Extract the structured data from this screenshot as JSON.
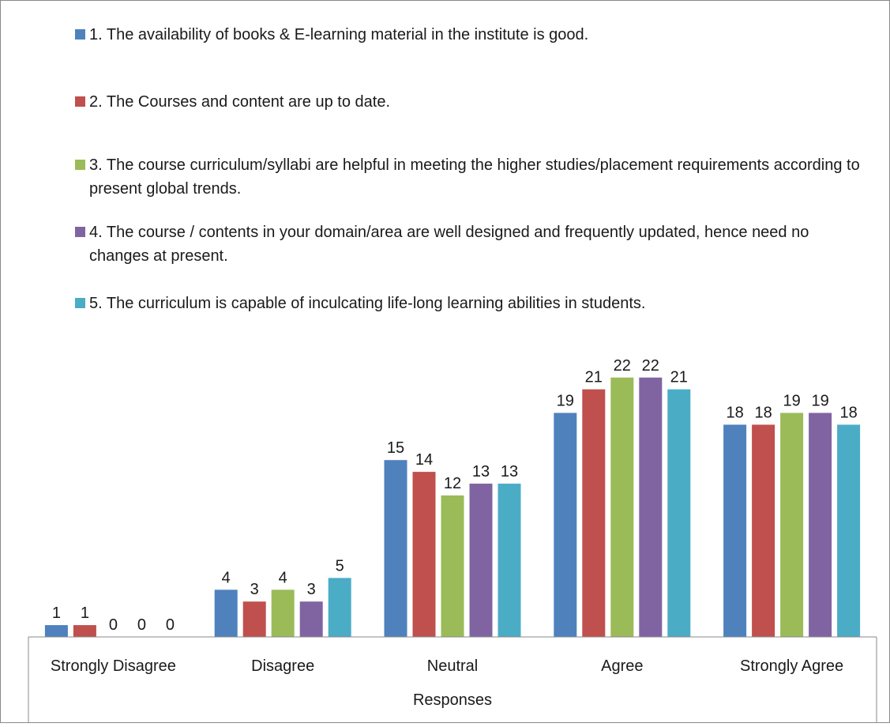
{
  "chart_data": {
    "type": "bar",
    "xlabel": "Responses",
    "ylabel": "",
    "ylim": [
      0,
      25
    ],
    "grid": false,
    "legend_position": "top",
    "categories": [
      "Strongly Disagree",
      "Disagree",
      "Neutral",
      "Agree",
      "Strongly Agree"
    ],
    "series": [
      {
        "name": "1. The availability of books & E-learning material in the institute is good.",
        "color": "#4F81BD",
        "values": [
          1,
          4,
          15,
          19,
          18
        ]
      },
      {
        "name": "2. The Courses and content are up to date.",
        "color": "#C0504D",
        "values": [
          1,
          3,
          14,
          21,
          18
        ]
      },
      {
        "name": "3. The course curriculum/syllabi are helpful in meeting the higher studies/placement requirements according to present global trends.",
        "color": "#9BBB59",
        "values": [
          0,
          4,
          12,
          22,
          19
        ]
      },
      {
        "name": "4. The course / contents in your domain/area are well designed and frequently updated, hence need no changes at present.",
        "color": "#8064A2",
        "values": [
          0,
          3,
          13,
          22,
          19
        ]
      },
      {
        "name": "5. The curriculum is capable of inculcating life-long learning abilities in students.",
        "color": "#4BACC6",
        "values": [
          0,
          5,
          13,
          21,
          18
        ]
      }
    ]
  }
}
